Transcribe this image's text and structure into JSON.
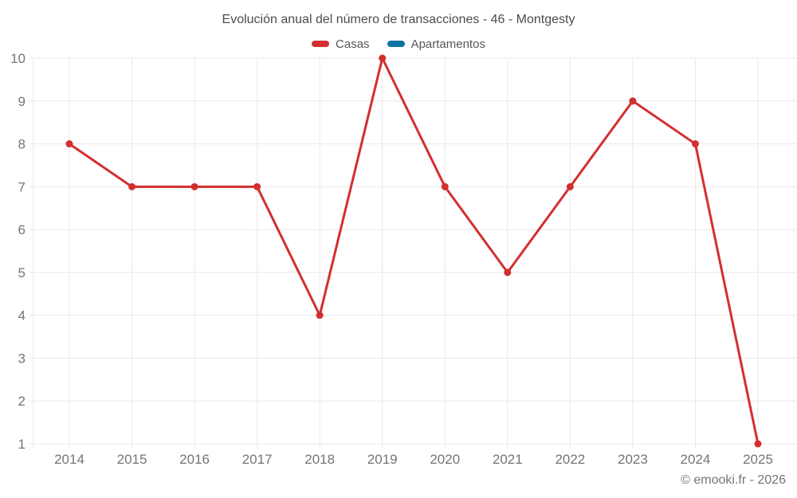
{
  "page": {
    "title": "Evolución anual del número de transacciones - 46 - Montgesty",
    "footer": "© emooki.fr - 2026"
  },
  "legend": {
    "items": [
      {
        "label": "Casas",
        "color": "#d32f2f"
      },
      {
        "label": "Apartamentos",
        "color": "#1273a2"
      }
    ]
  },
  "chart_data": {
    "type": "line",
    "title": "Evolución anual del número de transacciones - 46 - Montgesty",
    "categories": [
      "2014",
      "2015",
      "2016",
      "2017",
      "2018",
      "2019",
      "2020",
      "2021",
      "2022",
      "2023",
      "2024",
      "2025"
    ],
    "series": [
      {
        "name": "Casas",
        "color": "#d32f2f",
        "values": [
          8,
          7,
          7,
          7,
          4,
          10,
          7,
          5,
          7,
          9,
          8,
          1
        ]
      },
      {
        "name": "Apartamentos",
        "color": "#1273a2",
        "values": []
      }
    ],
    "xlabel": "",
    "ylabel": "",
    "ylim": [
      1,
      10
    ],
    "yticks": [
      1,
      2,
      3,
      4,
      5,
      6,
      7,
      8,
      9,
      10
    ],
    "grid": true,
    "legend_position": "top",
    "line_width": 3,
    "point_radius": 4.5
  },
  "colors": {
    "grid": "#e8e8e8",
    "axis_text": "#757575",
    "title_text": "#4c4c4c",
    "legend_text": "#565656",
    "background": "#ffffff"
  }
}
